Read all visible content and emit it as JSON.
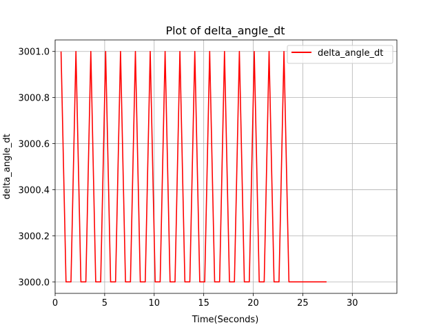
{
  "chart_data": {
    "type": "line",
    "title": "Plot of delta_angle_dt",
    "xlabel": "Time(Seconds)",
    "ylabel": "delta_angle_dt",
    "xlim": [
      0,
      34.5
    ],
    "ylim": [
      2999.95,
      3001.05
    ],
    "xticks": [
      0,
      5,
      10,
      15,
      20,
      25,
      30
    ],
    "yticks": [
      3000.0,
      3000.2,
      3000.4,
      3000.6,
      3000.8,
      3001.0
    ],
    "xtick_labels": [
      "0",
      "5",
      "10",
      "15",
      "20",
      "25",
      "30"
    ],
    "ytick_labels": [
      "3000.0",
      "3000.2",
      "3000.4",
      "3000.6",
      "3000.8",
      "3001.0"
    ],
    "grid": true,
    "legend_position": "upper right",
    "series": [
      {
        "name": "delta_angle_dt",
        "color": "#ff0000",
        "x": [
          0.6,
          1.1,
          1.6,
          2.1,
          2.6,
          3.1,
          3.6,
          4.1,
          4.6,
          5.1,
          5.6,
          6.1,
          6.6,
          7.1,
          7.6,
          8.1,
          8.6,
          9.1,
          9.6,
          10.1,
          10.6,
          11.1,
          11.6,
          12.1,
          12.6,
          13.1,
          13.6,
          14.1,
          14.6,
          15.1,
          15.6,
          16.1,
          16.6,
          17.1,
          17.6,
          18.1,
          18.6,
          19.1,
          19.6,
          20.1,
          20.6,
          21.1,
          21.6,
          22.1,
          22.6,
          23.1,
          23.6,
          27.4
        ],
        "y": [
          3001.0,
          3000.0,
          3000.0,
          3001.0,
          3000.0,
          3000.0,
          3001.0,
          3000.0,
          3000.0,
          3001.0,
          3000.0,
          3000.0,
          3001.0,
          3000.0,
          3000.0,
          3001.0,
          3000.0,
          3000.0,
          3001.0,
          3000.0,
          3000.0,
          3001.0,
          3000.0,
          3000.0,
          3001.0,
          3000.0,
          3000.0,
          3001.0,
          3000.0,
          3000.0,
          3001.0,
          3000.0,
          3000.0,
          3001.0,
          3000.0,
          3000.0,
          3001.0,
          3000.0,
          3000.0,
          3001.0,
          3000.0,
          3000.0,
          3001.0,
          3000.0,
          3000.0,
          3001.0,
          3000.0,
          3000.0
        ]
      }
    ]
  }
}
